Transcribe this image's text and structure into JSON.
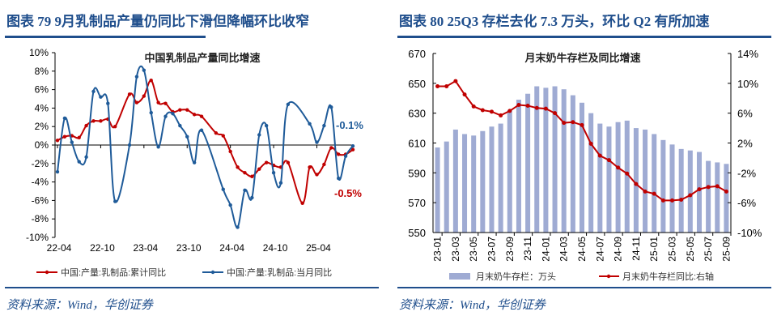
{
  "left_panel": {
    "header": "图表 79   9月乳制品产量仍同比下滑但降幅环比收窄",
    "source": "资料来源：Wind，华创证券"
  },
  "right_panel": {
    "header": "图表 80   25Q3 存栏去化 7.3 万头，环比 Q2 有所加速",
    "source": "资料来源：Wind，华创证券"
  },
  "chart_data": [
    {
      "type": "line",
      "title": "中国乳制品产量同比增速",
      "ylim": [
        -10,
        10
      ],
      "yticks": [
        "10%",
        "8%",
        "6%",
        "4%",
        "2%",
        "0%",
        "-2%",
        "-4%",
        "-6%",
        "-8%",
        "-10%"
      ],
      "x_tick_labels": [
        "22-04",
        "22-10",
        "23-04",
        "23-10",
        "24-04",
        "24-10",
        "25-04"
      ],
      "x_months": [
        "22-04",
        "22-05",
        "22-06",
        "22-07",
        "22-08",
        "22-09",
        "22-10",
        "22-11",
        "22-12",
        "23-01",
        "23-02",
        "23-03",
        "23-04",
        "23-05",
        "23-06",
        "23-07",
        "23-08",
        "23-09",
        "23-10",
        "23-11",
        "23-12",
        "24-01",
        "24-02",
        "24-03",
        "24-04",
        "24-05",
        "24-06",
        "24-07",
        "24-08",
        "24-09",
        "24-10",
        "24-11",
        "24-12",
        "25-01",
        "25-02",
        "25-03",
        "25-04",
        "25-05",
        "25-06",
        "25-07",
        "25-08",
        "25-09"
      ],
      "series": [
        {
          "name": "中国:产量:乳制品:累计同比",
          "color": "#c00000",
          "values": [
            0.5,
            0.9,
            1.0,
            0.8,
            2.1,
            2.6,
            2.6,
            2.8,
            2.0,
            null,
            5.5,
            4.6,
            5.3,
            7.0,
            4.6,
            4.5,
            3.6,
            3.8,
            3.8,
            3.3,
            3.1,
            null,
            1.3,
            1.0,
            -0.7,
            -2.4,
            -3.0,
            -3.4,
            -2.6,
            -1.9,
            -2.2,
            -2.4,
            -1.9,
            null,
            -6.3,
            -2.4,
            -3.2,
            -2.1,
            -0.3,
            -1.0,
            -1.0,
            -0.5
          ]
        },
        {
          "name": "中国:产量:乳制品:当月同比",
          "color": "#1f5b99",
          "values": [
            -2.9,
            2.9,
            0.3,
            -1.8,
            -1.3,
            5.8,
            5.2,
            4.5,
            -6.1,
            null,
            0.0,
            7.4,
            8.1,
            3.5,
            -0.2,
            3.1,
            3.4,
            2.1,
            0.9,
            -1.9,
            1.6,
            null,
            null,
            -4.8,
            -6.5,
            -8.9,
            -4.9,
            -5.7,
            1.1,
            2.1,
            -3.0,
            -4.1,
            4.4,
            null,
            null,
            2.3,
            0.3,
            2.1,
            4.1,
            -3.6,
            -1.2,
            -0.1
          ]
        }
      ],
      "annotations": [
        {
          "text": "-0.1%",
          "color": "#1f5b99"
        },
        {
          "text": "-0.5%",
          "color": "#c00000"
        }
      ],
      "legend": "bottom"
    },
    {
      "type": "bar+line",
      "title": "月末奶牛存栏及同比增速",
      "ylim_left": [
        550,
        670
      ],
      "yticks_left": [
        "670",
        "650",
        "630",
        "610",
        "590",
        "570",
        "550"
      ],
      "ylim_right": [
        -10,
        14
      ],
      "yticks_right": [
        "14%",
        "10%",
        "6%",
        "2%",
        "-2%",
        "-6%",
        "-10%"
      ],
      "categories": [
        "23-01",
        "23-02",
        "23-03",
        "23-04",
        "23-05",
        "23-06",
        "23-07",
        "23-08",
        "23-09",
        "23-10",
        "23-11",
        "23-12",
        "24-01",
        "24-02",
        "24-03",
        "24-04",
        "24-05",
        "24-06",
        "24-07",
        "24-08",
        "24-09",
        "24-10",
        "24-11",
        "24-12",
        "25-01",
        "25-02",
        "25-03",
        "25-04",
        "25-05",
        "25-06",
        "25-07",
        "25-08",
        "25-09"
      ],
      "x_tick_labels": [
        "23-01",
        "23-03",
        "23-05",
        "23-07",
        "23-09",
        "23-11",
        "24-01",
        "24-03",
        "24-05",
        "24-07",
        "24-09",
        "24-11",
        "25-01",
        "25-03",
        "25-05",
        "25-07",
        "25-09"
      ],
      "series": [
        {
          "name": "月末奶牛存栏：万头",
          "axis": "left",
          "color": "#9fabd3",
          "values": [
            607,
            611,
            619,
            616,
            615,
            618,
            621,
            623,
            632,
            639,
            643,
            648,
            647,
            648,
            646,
            642,
            637,
            630,
            623,
            621,
            624,
            625,
            620,
            619,
            616,
            612,
            609,
            606,
            605,
            604,
            598,
            597,
            596
          ]
        },
        {
          "name": "月末奶牛存栏同比:右轴",
          "axis": "right",
          "color": "#c00000",
          "values": [
            9.6,
            9.6,
            10.3,
            8.5,
            6.9,
            6.4,
            6.2,
            5.7,
            6.3,
            7.1,
            7.0,
            6.7,
            6.6,
            6.0,
            4.7,
            4.8,
            4.4,
            1.9,
            0.3,
            -0.3,
            -1.3,
            -2.1,
            -3.5,
            -4.5,
            -4.8,
            -5.7,
            -5.7,
            -5.6,
            -5.0,
            -4.2,
            -3.9,
            -3.8,
            -4.5
          ]
        }
      ],
      "legend": "bottom"
    }
  ]
}
